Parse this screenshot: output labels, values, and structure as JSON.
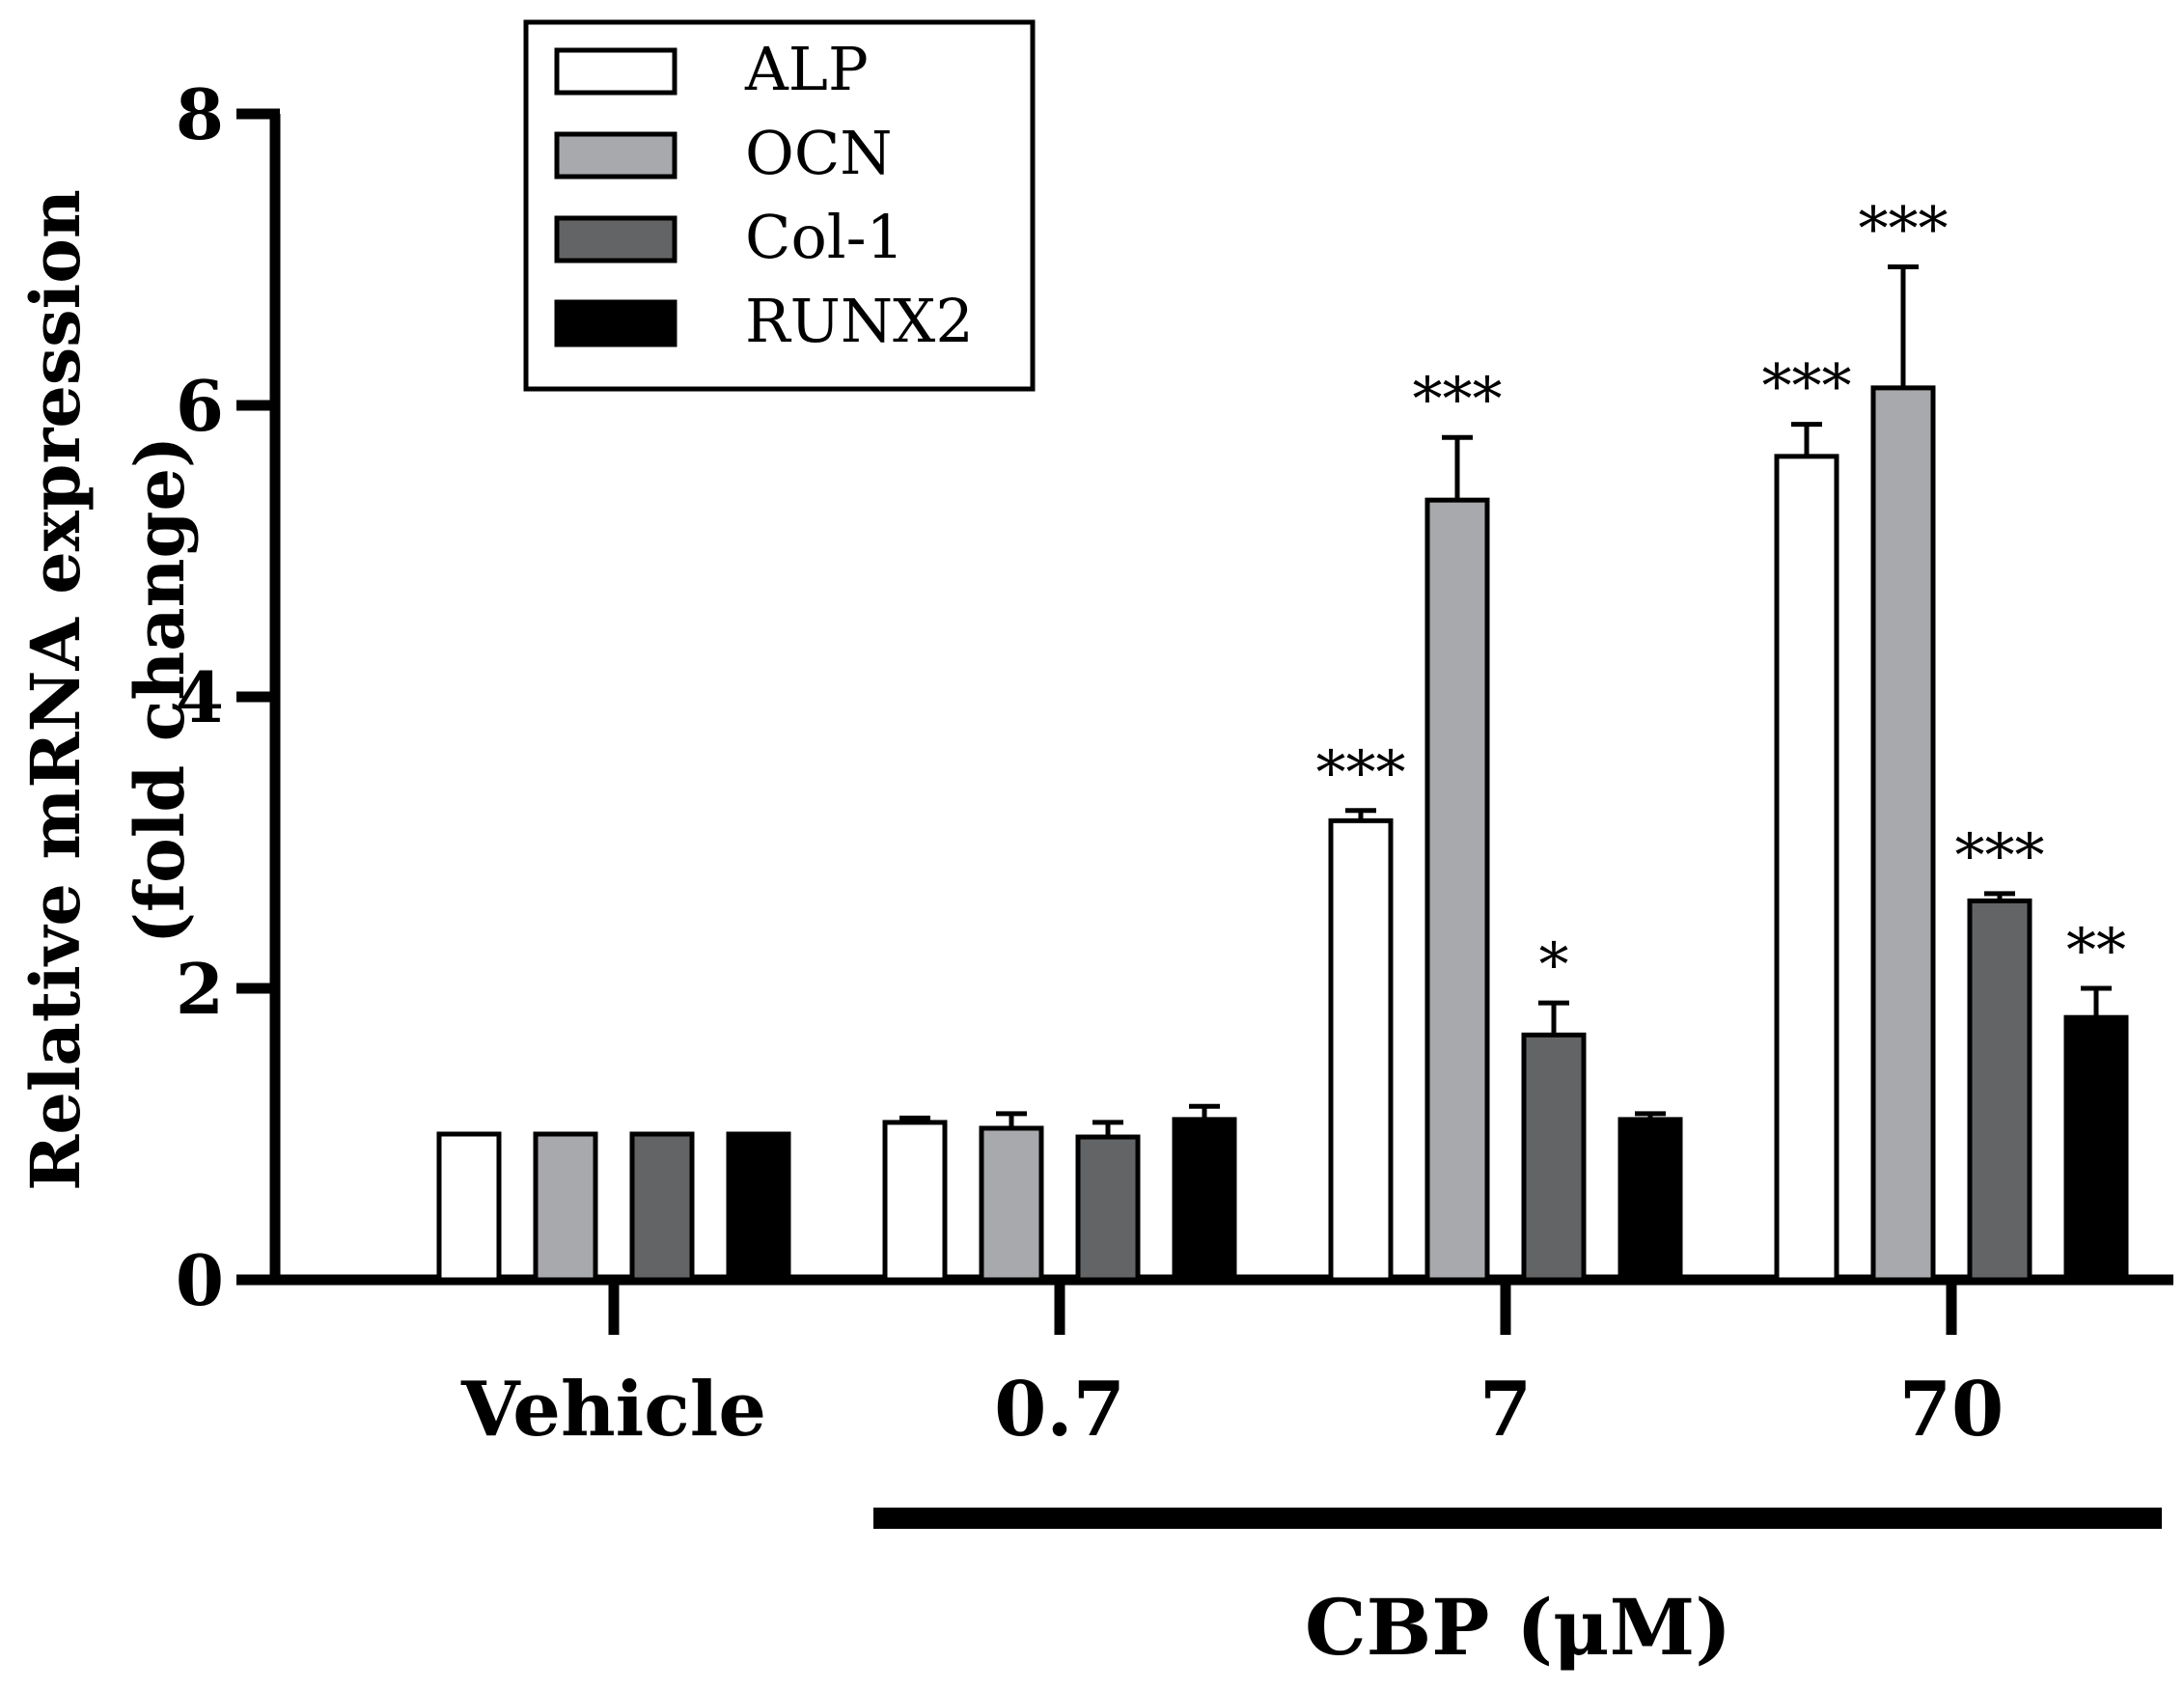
{
  "chart_data": {
    "type": "bar",
    "title": "",
    "ylabel_line1": "Relative mRNA expression",
    "ylabel_line2": "(fold change)",
    "xlabel": "CBP (μM)",
    "ylim": [
      0,
      8
    ],
    "yticks": [
      "0",
      "2",
      "4",
      "6",
      "8"
    ],
    "categories": [
      "Vehicle",
      "0.7",
      "7",
      "70"
    ],
    "legend_position": "top-left",
    "series": [
      {
        "name": "ALP",
        "color": "#ffffff",
        "values": [
          1.0,
          1.08,
          3.15,
          5.65
        ],
        "errors": [
          0,
          0.03,
          0.07,
          0.22
        ],
        "significance": [
          "",
          "",
          "***",
          "***"
        ]
      },
      {
        "name": "OCN",
        "color": "#a7a9ac",
        "values": [
          1.0,
          1.04,
          5.35,
          6.12
        ],
        "errors": [
          0,
          0.1,
          0.43,
          0.83
        ],
        "significance": [
          "",
          "",
          "***",
          "***"
        ]
      },
      {
        "name": "Col-1",
        "color": "#636466",
        "values": [
          1.0,
          0.98,
          1.68,
          2.6
        ],
        "errors": [
          0,
          0.1,
          0.22,
          0.05
        ],
        "significance": [
          "",
          "",
          "*",
          "***"
        ]
      },
      {
        "name": "RUNX2",
        "color": "#000000",
        "values": [
          1.0,
          1.1,
          1.1,
          1.8
        ],
        "errors": [
          0,
          0.09,
          0.04,
          0.2
        ],
        "significance": [
          "",
          "",
          "",
          "**"
        ]
      }
    ]
  }
}
